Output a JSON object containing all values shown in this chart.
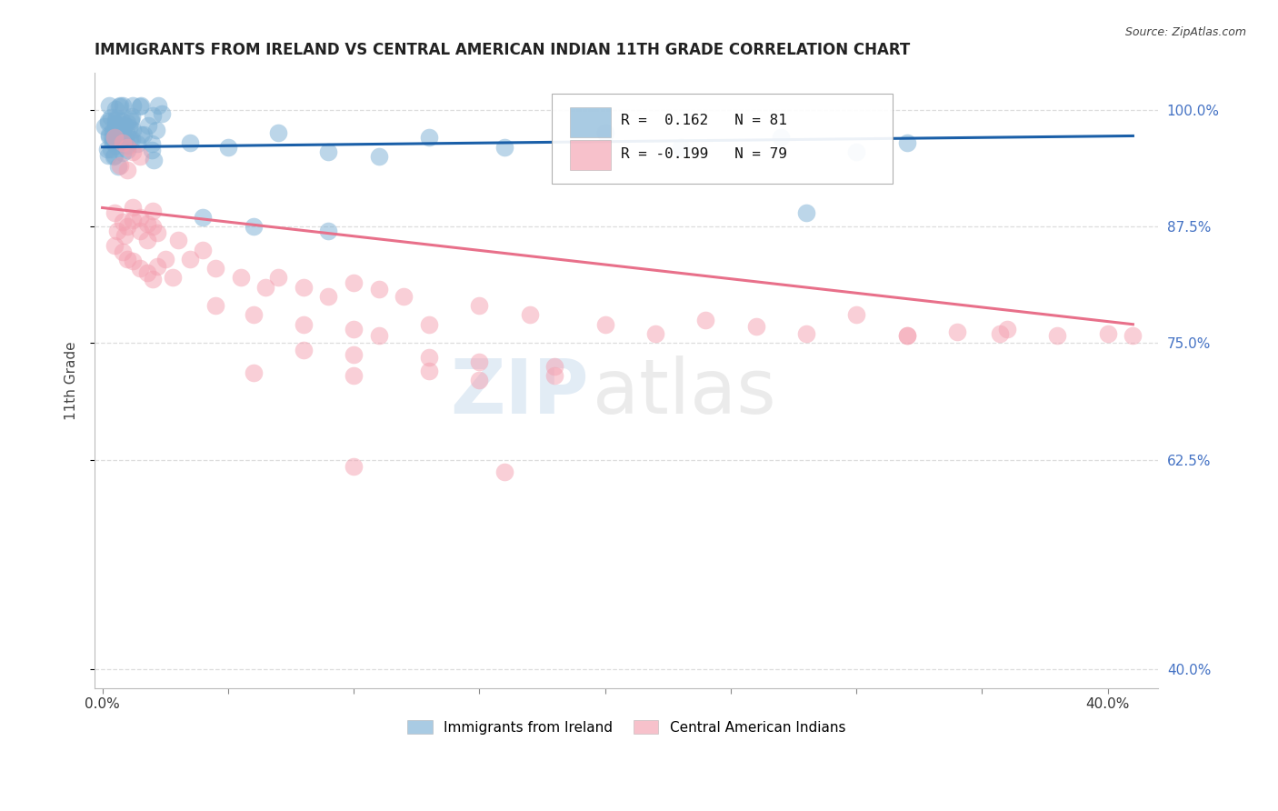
{
  "title": "IMMIGRANTS FROM IRELAND VS CENTRAL AMERICAN INDIAN 11TH GRADE CORRELATION CHART",
  "source": "Source: ZipAtlas.com",
  "ylabel": "11th Grade",
  "legend_entries": [
    "Immigrants from Ireland",
    "Central American Indians"
  ],
  "ireland_R": 0.162,
  "ireland_N": 81,
  "cai_R": -0.199,
  "cai_N": 79,
  "ireland_color": "#7bafd4",
  "cai_color": "#f4a0b0",
  "ireland_line_color": "#1a5fa8",
  "cai_line_color": "#e8708a",
  "watermark_zip": "ZIP",
  "watermark_atlas": "atlas",
  "background_color": "#ffffff",
  "grid_color": "#dddddd",
  "title_color": "#222222",
  "right_axis_color": "#4472c4",
  "ylim": [
    0.38,
    1.04
  ],
  "xlim": [
    -0.003,
    0.42
  ],
  "y_ticks": [
    0.4,
    0.625,
    0.75,
    0.875,
    1.0
  ],
  "y_tick_labels_right": [
    "40.0%",
    "62.5%",
    "75.0%",
    "87.5%",
    "100.0%"
  ],
  "x_tick_positions": [
    0.0,
    0.05,
    0.1,
    0.15,
    0.2,
    0.25,
    0.3,
    0.35,
    0.4
  ],
  "x_tick_labels": [
    "0.0%",
    "",
    "",
    "",
    "",
    "",
    "",
    "",
    "40.0%"
  ]
}
